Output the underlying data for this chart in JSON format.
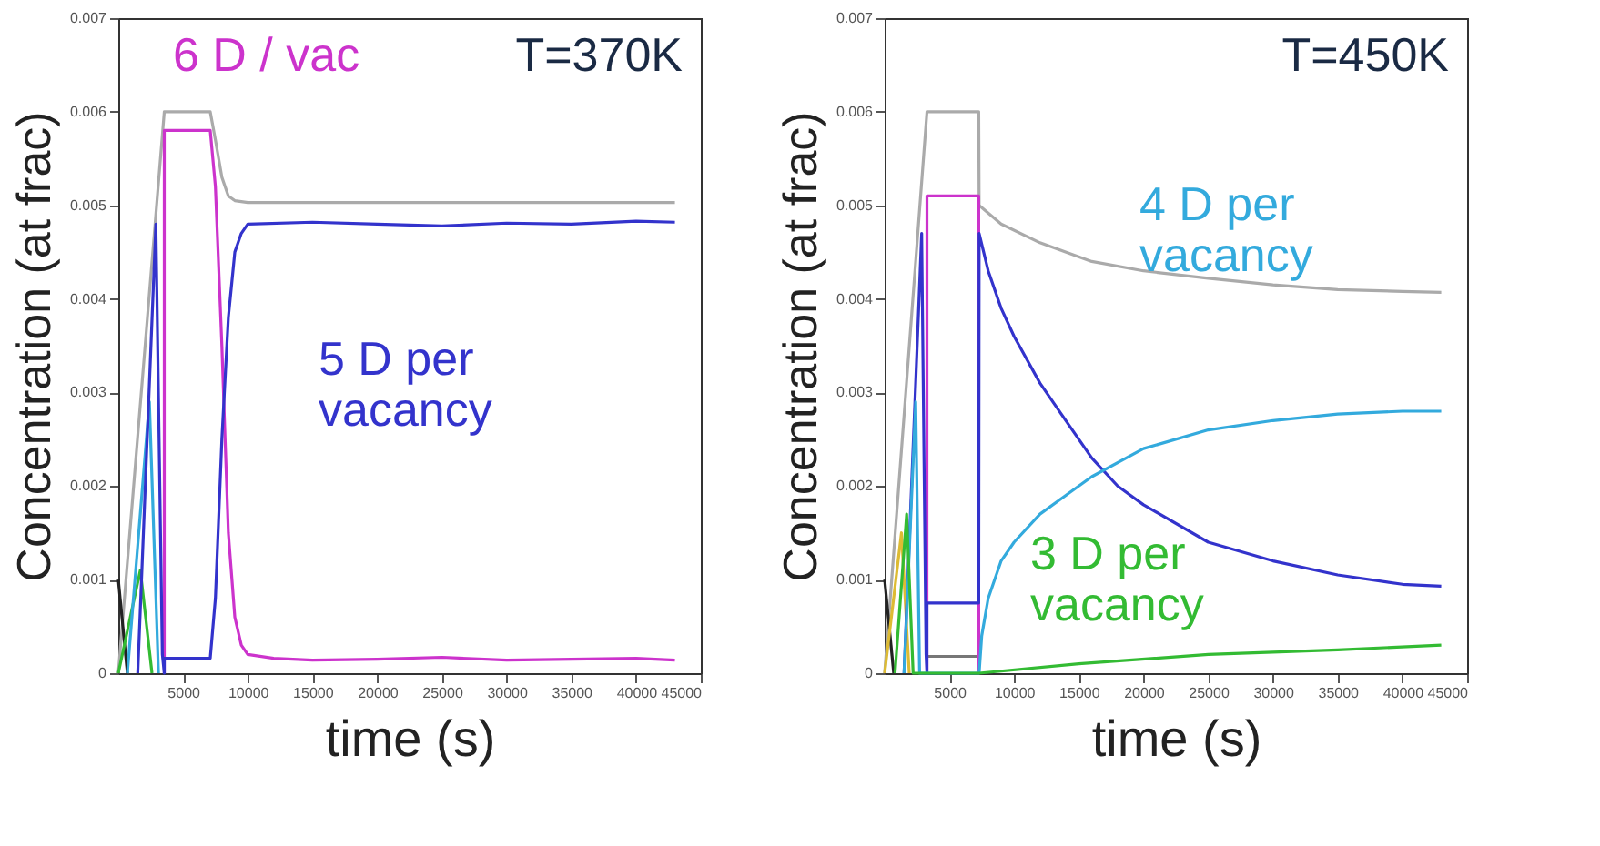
{
  "chart_data": [
    {
      "type": "line",
      "xlabel": "time (s)",
      "ylabel": "Concentration (at frac)",
      "annotations": [
        "T=370K"
      ],
      "xlim": [
        0,
        45000
      ],
      "xticks": [
        5000,
        10000,
        15000,
        20000,
        25000,
        30000,
        35000,
        40000,
        45000
      ],
      "ylim": [
        0,
        0.007
      ],
      "yticks": [
        0,
        0.001,
        0.002,
        0.003,
        0.004,
        0.005,
        0.006,
        0.007
      ],
      "grid": false,
      "marker": "none",
      "line_style": "solid",
      "series": [
        {
          "color": "#aaaaaa",
          "x": [
            0,
            3550,
            7100,
            7500,
            8000,
            8500,
            9000,
            10000,
            43000
          ],
          "values": [
            0,
            0.006,
            0.006,
            0.0057,
            0.0053,
            0.0051,
            0.00505,
            0.00503,
            0.00503
          ]
        },
        {
          "color": "#222222",
          "x": [
            0,
            700
          ],
          "values": [
            0.001,
            0
          ]
        },
        {
          "color": "#33bb33",
          "x": [
            0,
            1700,
            2600
          ],
          "values": [
            0,
            0.0011,
            0
          ]
        },
        {
          "color": "#33aadd",
          "x": [
            700,
            2400,
            3100
          ],
          "values": [
            0,
            0.0029,
            0
          ]
        },
        {
          "name": "6 D / vac",
          "color": "#cc33cc",
          "x": [
            3550,
            3550,
            7100,
            7500,
            8000,
            8500,
            9000,
            9500,
            10000,
            12000,
            15000,
            20000,
            25000,
            30000,
            35000,
            40000,
            43000
          ],
          "values": [
            0,
            0.0058,
            0.0058,
            0.0052,
            0.0035,
            0.0015,
            0.0006,
            0.0003,
            0.0002,
            0.00016,
            0.00014,
            0.00015,
            0.00017,
            0.00014,
            0.00015,
            0.00016,
            0.00014
          ]
        },
        {
          "name": "5 D per\nvacancy",
          "color": "#3333cc",
          "x": [
            1500,
            2900,
            3400,
            3550,
            3550,
            7100,
            7500,
            8000,
            8500,
            9000,
            9500,
            10000,
            15000,
            20000,
            25000,
            30000,
            35000,
            40000,
            43000
          ],
          "values": [
            0,
            0.0048,
            0.0002,
            0,
            0.00016,
            0.00016,
            0.0008,
            0.0025,
            0.0038,
            0.0045,
            0.0047,
            0.0048,
            0.00482,
            0.0048,
            0.00478,
            0.00481,
            0.0048,
            0.00483,
            0.00482
          ]
        }
      ]
    },
    {
      "type": "line",
      "xlabel": "time (s)",
      "ylabel": "Concentration (at frac)",
      "annotations": [
        "T=450K"
      ],
      "xlim": [
        0,
        45000
      ],
      "xticks": [
        5000,
        10000,
        15000,
        20000,
        25000,
        30000,
        35000,
        40000,
        45000
      ],
      "ylim": [
        0,
        0.007
      ],
      "yticks": [
        0,
        0.001,
        0.002,
        0.003,
        0.004,
        0.005,
        0.006,
        0.007
      ],
      "grid": false,
      "marker": "none",
      "line_style": "solid",
      "series": [
        {
          "color": "#aaaaaa",
          "x": [
            0,
            3270,
            7270,
            7300,
            9000,
            12000,
            16000,
            20000,
            25000,
            30000,
            35000,
            40000,
            43000
          ],
          "values": [
            0,
            0.006,
            0.006,
            0.005,
            0.0048,
            0.0046,
            0.0044,
            0.0043,
            0.00422,
            0.00415,
            0.0041,
            0.00408,
            0.00407
          ]
        },
        {
          "color": "#777777",
          "x": [
            3270,
            7270
          ],
          "values": [
            0.00018,
            0.00018
          ]
        },
        {
          "color": "#222222",
          "x": [
            0,
            700
          ],
          "values": [
            0.001,
            0
          ]
        },
        {
          "color": "#ddbb33",
          "x": [
            0,
            1300,
            1900
          ],
          "values": [
            0,
            0.0015,
            0
          ]
        },
        {
          "color": "#cc33cc",
          "x": [
            3270,
            3270,
            7270,
            7270
          ],
          "values": [
            0,
            0.0051,
            0.0051,
            0
          ]
        },
        {
          "color": "#3333cc",
          "x": [
            1500,
            2860,
            3200,
            3270,
            3270,
            7270,
            7300,
            8000,
            9000,
            10000,
            12000,
            14000,
            16000,
            18000,
            20000,
            25000,
            30000,
            35000,
            40000,
            43000
          ],
          "values": [
            0,
            0.0047,
            0.0002,
            0,
            0.00075,
            0.00075,
            0.0047,
            0.0043,
            0.0039,
            0.0036,
            0.0031,
            0.0027,
            0.0023,
            0.002,
            0.0018,
            0.0014,
            0.0012,
            0.00105,
            0.00095,
            0.00093
          ]
        },
        {
          "name": "4 D per\nvacancy",
          "color": "#33aadd",
          "x": [
            1500,
            2400,
            2700,
            7300,
            7500,
            8000,
            9000,
            10000,
            12000,
            14000,
            16000,
            20000,
            25000,
            30000,
            35000,
            40000,
            43000
          ],
          "values": [
            0,
            0.0029,
            0,
            0,
            0.0004,
            0.0008,
            0.0012,
            0.0014,
            0.0017,
            0.0019,
            0.0021,
            0.0024,
            0.0026,
            0.0027,
            0.00277,
            0.0028,
            0.0028
          ]
        },
        {
          "name": "3 D per\nvacancy",
          "color": "#33bb33",
          "x": [
            800,
            1700,
            2200,
            7300,
            15000,
            25000,
            35000,
            43000
          ],
          "values": [
            0,
            0.0017,
            0,
            0,
            0.0001,
            0.0002,
            0.00025,
            0.0003
          ]
        }
      ]
    }
  ]
}
